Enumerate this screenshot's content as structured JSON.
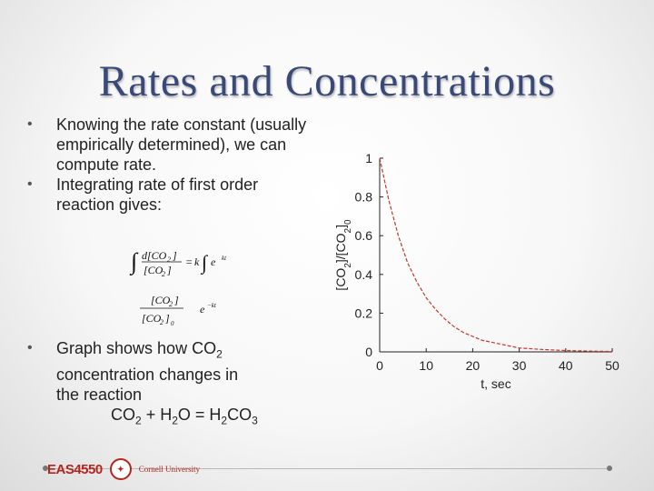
{
  "slide": {
    "title": "Rates and Concentrations",
    "bullets": [
      "Knowing the rate constant (usually empirically determined), we can compute rate.",
      "Integrating rate of first order reaction gives:"
    ],
    "bullet3": {
      "line1_a": "Graph shows how CO",
      "line1_sub": "2",
      "line2": "concentration changes in",
      "line3": "the reaction",
      "eq": {
        "a": "CO",
        "a_sub": "2",
        "plus": " + H",
        "h_sub": "2",
        "o": "O = H",
        "h2_sub": "2",
        "co3": "CO",
        "co3_sub": "3"
      }
    },
    "bullet_char": "•"
  },
  "footer": {
    "course": "EAS4550",
    "university": "Cornell University"
  },
  "chart_data": {
    "type": "line",
    "xlabel": "t, sec",
    "ylabel": "[CO2]/[CO2]0",
    "xlim": [
      0,
      50
    ],
    "ylim": [
      0,
      1
    ],
    "xticks": [
      0,
      10,
      20,
      30,
      40,
      50
    ],
    "yticks": [
      0,
      0.2,
      0.4,
      0.6,
      0.8,
      1
    ],
    "ytick_labels": [
      "0",
      "0.2",
      "0.4",
      "0.6",
      "0.8",
      "1"
    ],
    "grid": false,
    "series": [
      {
        "color": "#c0392b",
        "style": "dashed",
        "x": [
          0,
          2,
          4,
          6,
          8,
          10,
          12,
          14,
          16,
          18,
          20,
          22,
          24,
          26,
          28,
          30,
          35,
          40,
          45,
          50
        ],
        "y": [
          1.0,
          0.78,
          0.6,
          0.46,
          0.36,
          0.28,
          0.22,
          0.17,
          0.13,
          0.1,
          0.08,
          0.06,
          0.05,
          0.04,
          0.03,
          0.02,
          0.012,
          0.007,
          0.004,
          0.002
        ]
      }
    ]
  }
}
